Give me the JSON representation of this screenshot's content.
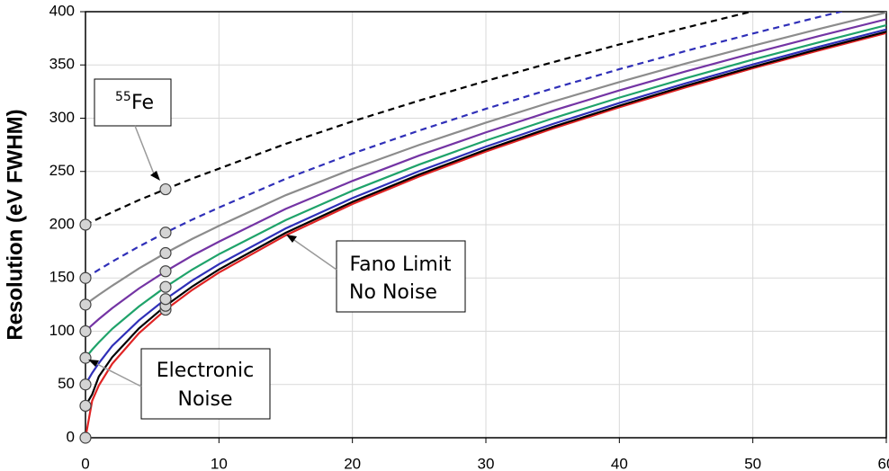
{
  "chart_data": {
    "type": "line",
    "y_label": "Resolution (eV FWHM)",
    "x": [
      0,
      0.5,
      1,
      2,
      4,
      6,
      8,
      10,
      15,
      20,
      25,
      30,
      35,
      40,
      45,
      50,
      55,
      60
    ],
    "series": [
      {
        "color": "#e02424",
        "dash": "solid",
        "values": [
          0,
          34.7,
          49.1,
          69.4,
          98.1,
          120.2,
          138.8,
          155.1,
          190.0,
          219.4,
          245.3,
          268.7,
          290.2,
          310.3,
          329.1,
          346.9,
          363.8,
          380.0
        ]
      },
      {
        "color": "#000000",
        "dash": "solid",
        "values": [
          30,
          40.7,
          57.5,
          75.6,
          102.6,
          123.9,
          142.0,
          158.0,
          192.4,
          221.4,
          247.1,
          270.4,
          291.8,
          311.7,
          330.5,
          348.2,
          365.1,
          381.2
        ]
      },
      {
        "color": "#2f2fb8",
        "dash": "solid",
        "values": [
          50,
          60.8,
          70.0,
          86.2,
          110.2,
          130.2,
          147.6,
          162.9,
          196.5,
          225.0,
          250.3,
          273.3,
          294.5,
          314.3,
          332.9,
          350.5,
          367.2,
          383.3
        ]
      },
      {
        "color": "#1fa36a",
        "dash": "solid",
        "values": [
          75,
          82.7,
          89.6,
          102.2,
          123.2,
          141.6,
          157.9,
          172.3,
          204.3,
          231.9,
          256.5,
          279.0,
          299.8,
          319.3,
          337.6,
          355.0,
          371.4,
          387.3
        ]
      },
      {
        "color": "#7434a4",
        "dash": "solid",
        "values": [
          100,
          105.9,
          111.4,
          121.6,
          140.1,
          156.3,
          171.0,
          184.1,
          214.9,
          241.1,
          264.9,
          286.7,
          307.0,
          326.1,
          344.0,
          361.0,
          377.3,
          392.9
        ]
      },
      {
        "color": "#8c8c8c",
        "dash": "solid",
        "values": [
          125,
          129.7,
          134.2,
          142.7,
          158.9,
          173.4,
          186.7,
          198.9,
          227.7,
          252.3,
          274.9,
          295.8,
          315.5,
          333.9,
          351.4,
          368.0,
          383.9,
          399.3
        ]
      },
      {
        "color": "#2f2fb8",
        "dash": "dashed",
        "values": [
          150,
          153.9,
          157.8,
          165.3,
          179.5,
          192.6,
          204.8,
          216.1,
          243.1,
          266.8,
          288.4,
          308.8,
          327.9,
          346.0,
          363.2,
          379.5,
          395.2,
          410.4
        ]
      },
      {
        "color": "#000000",
        "dash": "dashed",
        "values": [
          200,
          202.9,
          205.9,
          211.7,
          223.1,
          233.3,
          243.3,
          252.6,
          275.9,
          297.0,
          316.5,
          334.9,
          352.5,
          369.2,
          385.1,
          400.4,
          415.8,
          430.6
        ]
      }
    ],
    "marker_x": [
      0,
      6
    ],
    "xlim": [
      0,
      60
    ],
    "xticks": [
      0,
      10,
      20,
      30,
      40,
      50,
      60
    ],
    "ylim": [
      0,
      400
    ],
    "yticks": [
      0,
      50,
      100,
      150,
      200,
      250,
      300,
      350,
      400
    ],
    "grid": true,
    "annotations": [
      {
        "superscript": "55",
        "lines": [
          "Fe"
        ]
      },
      {
        "lines": [
          "Fano Limit",
          "No Noise"
        ]
      },
      {
        "lines": [
          "Electronic",
          "Noise"
        ]
      }
    ]
  }
}
